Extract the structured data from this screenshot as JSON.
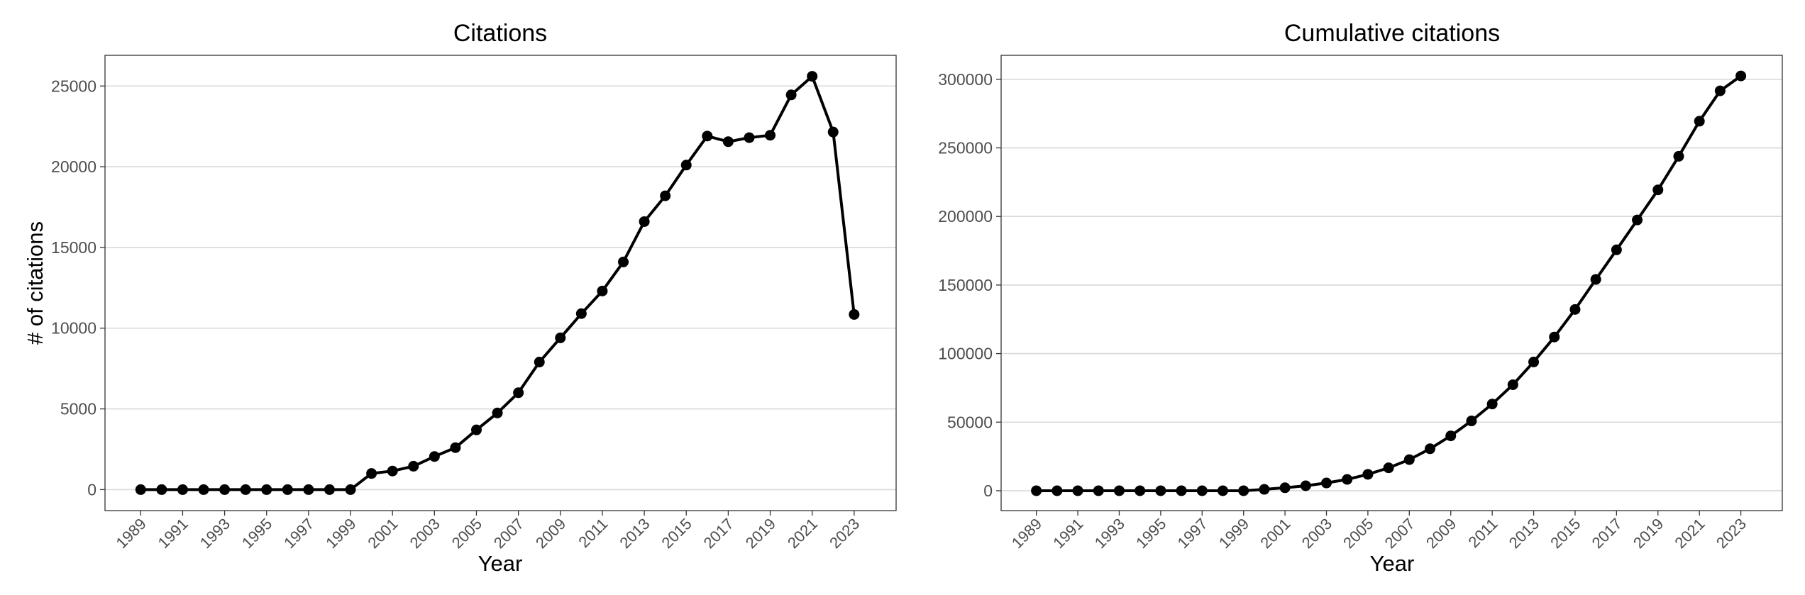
{
  "chart_data": [
    {
      "type": "line",
      "title": "Citations",
      "xlabel": "Year",
      "ylabel": "# of citations",
      "x": [
        1989,
        1990,
        1991,
        1992,
        1993,
        1994,
        1995,
        1996,
        1997,
        1998,
        1999,
        2000,
        2001,
        2002,
        2003,
        2004,
        2005,
        2006,
        2007,
        2008,
        2009,
        2010,
        2011,
        2012,
        2013,
        2014,
        2015,
        2016,
        2017,
        2018,
        2019,
        2020,
        2021,
        2022,
        2023
      ],
      "series": [
        {
          "values": [
            0,
            0,
            0,
            0,
            0,
            0,
            0,
            0,
            0,
            0,
            0,
            1000,
            1150,
            1450,
            2050,
            2600,
            3700,
            4750,
            6000,
            7900,
            9400,
            10900,
            12300,
            14100,
            16600,
            18200,
            20100,
            21900,
            21550,
            21800,
            21950,
            24450,
            25600,
            22150,
            10850
          ]
        }
      ],
      "xticks": [
        1989,
        1991,
        1993,
        1995,
        1997,
        1999,
        2001,
        2003,
        2005,
        2007,
        2009,
        2011,
        2013,
        2015,
        2017,
        2019,
        2021,
        2023
      ],
      "yticks": [
        0,
        5000,
        10000,
        15000,
        20000,
        25000
      ],
      "xlim": [
        1987.3,
        2025
      ],
      "ylim": [
        -1300,
        26900
      ],
      "grid": "horizontal",
      "color": "#000000"
    },
    {
      "type": "line",
      "title": "Cumulative citations",
      "xlabel": "Year",
      "ylabel": "",
      "x": [
        1989,
        1990,
        1991,
        1992,
        1993,
        1994,
        1995,
        1996,
        1997,
        1998,
        1999,
        2000,
        2001,
        2002,
        2003,
        2004,
        2005,
        2006,
        2007,
        2008,
        2009,
        2010,
        2011,
        2012,
        2013,
        2014,
        2015,
        2016,
        2017,
        2018,
        2019,
        2020,
        2021,
        2022,
        2023
      ],
      "series": [
        {
          "values": [
            0,
            0,
            0,
            0,
            0,
            0,
            0,
            0,
            0,
            0,
            0,
            1000,
            2150,
            3600,
            5650,
            8250,
            11950,
            16700,
            22700,
            30600,
            40000,
            50900,
            63200,
            77300,
            93900,
            112100,
            132200,
            154100,
            175650,
            197450,
            219400,
            243850,
            269450,
            291600,
            302450
          ]
        }
      ],
      "xticks": [
        1989,
        1991,
        1993,
        1995,
        1997,
        1999,
        2001,
        2003,
        2005,
        2007,
        2009,
        2011,
        2013,
        2015,
        2017,
        2019,
        2021,
        2023
      ],
      "yticks": [
        0,
        50000,
        100000,
        150000,
        200000,
        250000,
        300000
      ],
      "xlim": [
        1987.3,
        2025
      ],
      "ylim": [
        -14500,
        317500
      ],
      "grid": "horizontal",
      "color": "#000000"
    }
  ]
}
